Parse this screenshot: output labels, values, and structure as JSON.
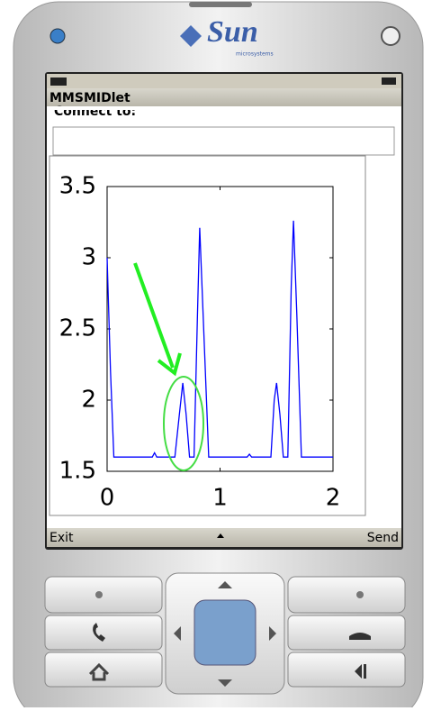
{
  "phone": {
    "brand": "Sun",
    "brand_sub": "microsystems"
  },
  "screen": {
    "title": "MMSMIDlet",
    "prompt": "Connect to:",
    "soft_left": "Exit",
    "soft_right": "Send"
  },
  "chart_data": {
    "type": "line",
    "color": "#0000ff",
    "x": [
      0,
      0.03,
      0.06,
      0.1,
      0.4,
      0.42,
      0.44,
      0.6,
      0.64,
      0.67,
      0.7,
      0.73,
      0.77,
      0.8,
      0.82,
      0.85,
      0.9,
      1.24,
      1.26,
      1.28,
      1.45,
      1.48,
      1.5,
      1.53,
      1.56,
      1.6,
      1.63,
      1.65,
      1.68,
      1.72,
      2.0
    ],
    "values": [
      3.0,
      2.2,
      1.6,
      1.6,
      1.6,
      1.63,
      1.6,
      1.6,
      1.9,
      2.12,
      1.9,
      1.6,
      1.6,
      2.6,
      3.21,
      2.6,
      1.6,
      1.6,
      1.62,
      1.6,
      1.6,
      2.0,
      2.12,
      1.9,
      1.6,
      1.6,
      2.8,
      3.26,
      2.6,
      1.6,
      1.6
    ],
    "xlim": [
      0,
      2
    ],
    "ylim": [
      1.5,
      3.5
    ],
    "xticks": [
      0,
      1,
      2
    ],
    "yticks": [
      1.5,
      2,
      2.5,
      3,
      3.5
    ]
  }
}
